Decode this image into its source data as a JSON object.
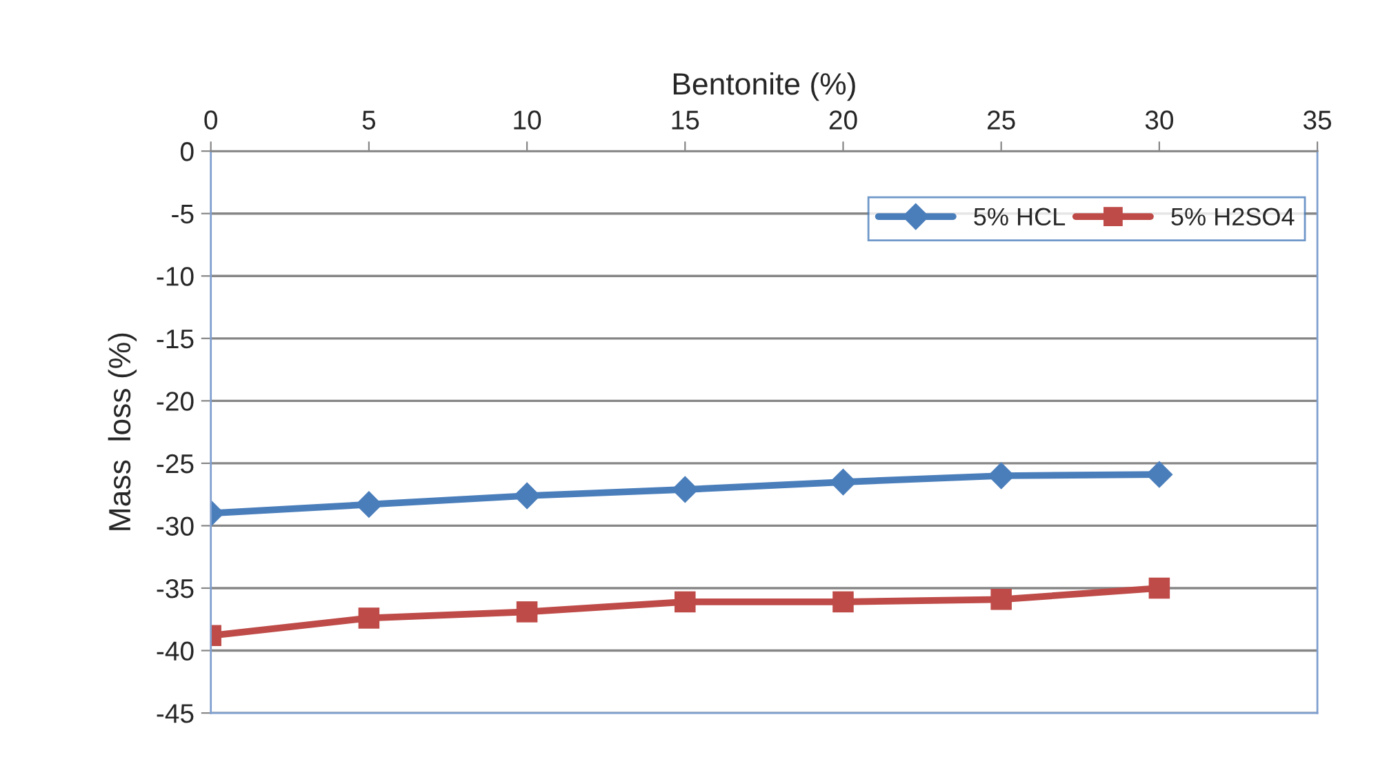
{
  "chart_data": {
    "type": "line",
    "xlabel": "Bentonite (%)",
    "ylabel": "Mass  loss (%)",
    "x": [
      0,
      5,
      10,
      15,
      20,
      25,
      30
    ],
    "series": [
      {
        "name": "5% HCL",
        "color": "#4a7ebb",
        "marker": "diamond",
        "values": [
          -29.0,
          -28.3,
          -27.6,
          -27.1,
          -26.5,
          -26.0,
          -25.9
        ]
      },
      {
        "name": "5% H2SO4",
        "color": "#be4b48",
        "marker": "square",
        "values": [
          -38.8,
          -37.4,
          -36.9,
          -36.1,
          -36.1,
          -35.9,
          -35.0
        ]
      }
    ],
    "xlim": [
      0,
      35
    ],
    "xticks": [
      0,
      5,
      10,
      15,
      20,
      25,
      30,
      35
    ],
    "ylim": [
      -45,
      0
    ],
    "yticks": [
      -45,
      -40,
      -35,
      -30,
      -25,
      -20,
      -15,
      -10,
      -5,
      0
    ],
    "grid": "y",
    "legend": "top right",
    "line_style": "solid"
  }
}
